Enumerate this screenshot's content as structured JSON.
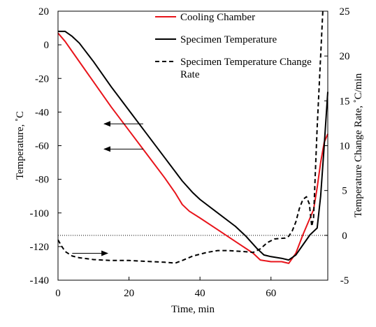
{
  "chart_data": {
    "type": "line",
    "xlabel": "Time, min",
    "ylabel_left": "Temperature, ˚C",
    "ylabel_right": "Temperature Change Rate, ˚C/min",
    "xlim": [
      0,
      76
    ],
    "ylim_left": [
      -140,
      20
    ],
    "ylim_right": [
      -5,
      25
    ],
    "x_ticks": [
      "0",
      "20",
      "40",
      "60"
    ],
    "y_left_ticks": [
      "20",
      "0",
      "-20",
      "-40",
      "-60",
      "-80",
      "-100",
      "-120",
      "-140"
    ],
    "y_right_ticks": [
      "25",
      "20",
      "15",
      "10",
      "5",
      "0",
      "-5"
    ],
    "grid": false,
    "legend_position": "top-right",
    "reference_line": {
      "axis": "right",
      "value": 0,
      "style": "dotted"
    },
    "annotation_arrows": [
      {
        "from": [
          24,
          -47
        ],
        "to": [
          13,
          -47
        ],
        "direction": "left"
      },
      {
        "from": [
          24,
          -62
        ],
        "to": [
          13,
          -62
        ],
        "direction": "left"
      },
      {
        "from": [
          4,
          -124
        ],
        "to": [
          14,
          -124
        ],
        "direction": "right"
      }
    ],
    "series": [
      {
        "name": "Cooling Chamber",
        "axis": "left",
        "color": "#e8141b",
        "style": "solid",
        "points": [
          [
            0,
            7
          ],
          [
            2,
            2
          ],
          [
            5,
            -7
          ],
          [
            10,
            -22
          ],
          [
            15,
            -37
          ],
          [
            20,
            -51
          ],
          [
            25,
            -65
          ],
          [
            30,
            -79
          ],
          [
            33,
            -88
          ],
          [
            35,
            -95
          ],
          [
            37,
            -99
          ],
          [
            40,
            -103
          ],
          [
            45,
            -110
          ],
          [
            50,
            -117
          ],
          [
            55,
            -124
          ],
          [
            57,
            -128
          ],
          [
            60,
            -129
          ],
          [
            63,
            -129
          ],
          [
            65,
            -130
          ],
          [
            67,
            -124
          ],
          [
            69,
            -113
          ],
          [
            71,
            -103
          ],
          [
            72,
            -98
          ],
          [
            73,
            -85
          ],
          [
            74,
            -70
          ],
          [
            75,
            -58
          ],
          [
            76,
            -53
          ]
        ]
      },
      {
        "name": "Specimen Temperature",
        "axis": "left",
        "color": "#000000",
        "style": "solid",
        "points": [
          [
            0,
            8
          ],
          [
            2,
            8
          ],
          [
            4,
            5
          ],
          [
            6,
            1
          ],
          [
            10,
            -10
          ],
          [
            15,
            -25
          ],
          [
            20,
            -39
          ],
          [
            25,
            -53
          ],
          [
            30,
            -67
          ],
          [
            35,
            -81
          ],
          [
            38,
            -88
          ],
          [
            40,
            -92
          ],
          [
            45,
            -100
          ],
          [
            50,
            -108
          ],
          [
            53,
            -114
          ],
          [
            56,
            -121
          ],
          [
            58,
            -125
          ],
          [
            60,
            -126
          ],
          [
            63,
            -127
          ],
          [
            65,
            -128
          ],
          [
            67,
            -125
          ],
          [
            69,
            -119
          ],
          [
            71,
            -113
          ],
          [
            72,
            -111
          ],
          [
            73,
            -109
          ],
          [
            74,
            -90
          ],
          [
            75,
            -60
          ],
          [
            76,
            -28
          ]
        ]
      },
      {
        "name": "Specimen Temperature Change Rate",
        "axis": "right",
        "color": "#000000",
        "style": "dashed",
        "points": [
          [
            0,
            -0.5
          ],
          [
            1,
            -1.2
          ],
          [
            2,
            -1.8
          ],
          [
            4,
            -2.3
          ],
          [
            6,
            -2.5
          ],
          [
            10,
            -2.7
          ],
          [
            15,
            -2.8
          ],
          [
            20,
            -2.8
          ],
          [
            25,
            -2.9
          ],
          [
            30,
            -3.0
          ],
          [
            33,
            -3.1
          ],
          [
            35,
            -2.8
          ],
          [
            38,
            -2.3
          ],
          [
            42,
            -1.9
          ],
          [
            45,
            -1.7
          ],
          [
            48,
            -1.7
          ],
          [
            52,
            -1.8
          ],
          [
            55,
            -1.9
          ],
          [
            57,
            -1.5
          ],
          [
            59,
            -0.8
          ],
          [
            61,
            -0.4
          ],
          [
            64,
            -0.3
          ],
          [
            65,
            -0.1
          ],
          [
            66,
            0.5
          ],
          [
            67,
            1.5
          ],
          [
            68,
            3.0
          ],
          [
            69,
            4.0
          ],
          [
            70,
            4.3
          ],
          [
            70.8,
            3.5
          ],
          [
            71.5,
            1.0
          ],
          [
            72,
            2.0
          ],
          [
            72.5,
            7.0
          ],
          [
            73,
            12.0
          ],
          [
            74,
            20.0
          ],
          [
            74.6,
            25.0
          ]
        ]
      }
    ]
  }
}
